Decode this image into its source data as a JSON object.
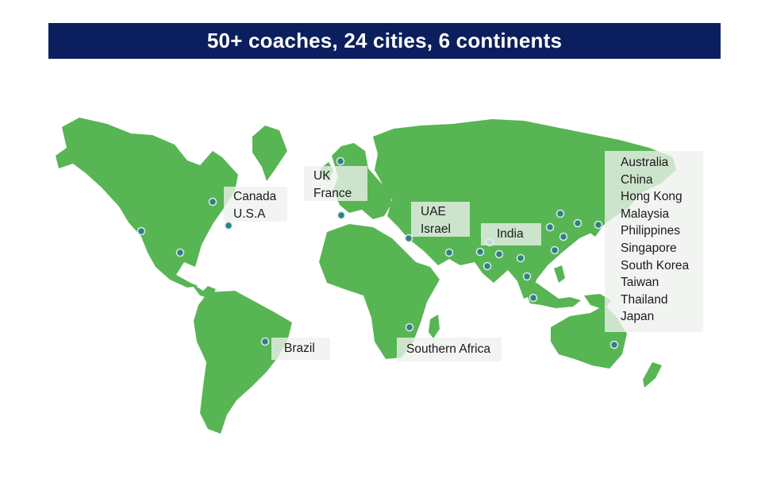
{
  "banner": {
    "title": "50+ coaches, 24 cities, 6 continents"
  },
  "colors": {
    "banner_bg": "#0b1f5e",
    "land_top": "#b4ecae",
    "land_bottom": "#5cb858",
    "marker": "#2e7f86"
  },
  "labels": {
    "north_america": [
      "Canada",
      "U.S.A"
    ],
    "europe": [
      "UK",
      "France"
    ],
    "middle_east": [
      "UAE",
      "Israel"
    ],
    "india": [
      "India"
    ],
    "south_america": [
      "Brazil"
    ],
    "africa": [
      "Southern Africa"
    ],
    "asia_pacific": [
      "Australia",
      "China",
      "Hong Kong",
      "Malaysia",
      "Philippines",
      "Singapore",
      "South Korea",
      "Taiwan",
      "Thailand",
      "Japan"
    ]
  },
  "marker_icon": "map-pin-dot-icon"
}
